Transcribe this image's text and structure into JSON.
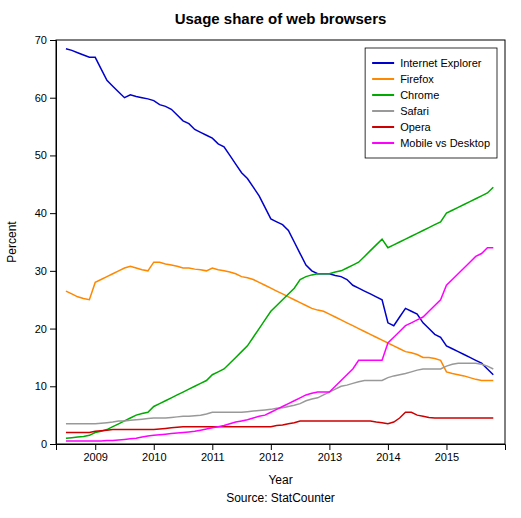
{
  "chart_data": {
    "type": "line",
    "title": "Usage share of web browsers",
    "xlabel": "Year",
    "ylabel": "Percent",
    "annotations": [
      "Source: StatCounter"
    ],
    "xlim": [
      2008.33,
      2016.0
    ],
    "xticks": [
      2009,
      2010,
      2011,
      2012,
      2013,
      2014,
      2015
    ],
    "ylim": [
      0,
      70
    ],
    "yticks": [
      0,
      10,
      20,
      30,
      40,
      50,
      60,
      70
    ],
    "grid": false,
    "legend": "upper right",
    "x": [
      2008.5,
      2008.6,
      2008.7,
      2008.8,
      2008.9,
      2009.0,
      2009.1,
      2009.2,
      2009.3,
      2009.4,
      2009.5,
      2009.6,
      2009.7,
      2009.8,
      2009.9,
      2010.0,
      2010.1,
      2010.2,
      2010.3,
      2010.4,
      2010.5,
      2010.6,
      2010.7,
      2010.8,
      2010.9,
      2011.0,
      2011.1,
      2011.2,
      2011.3,
      2011.4,
      2011.5,
      2011.6,
      2011.7,
      2011.8,
      2011.9,
      2012.0,
      2012.1,
      2012.2,
      2012.3,
      2012.4,
      2012.5,
      2012.6,
      2012.7,
      2012.8,
      2012.9,
      2013.0,
      2013.1,
      2013.2,
      2013.3,
      2013.4,
      2013.5,
      2013.6,
      2013.7,
      2013.8,
      2013.9,
      2014.0,
      2014.1,
      2014.2,
      2014.3,
      2014.4,
      2014.5,
      2014.6,
      2014.7,
      2014.8,
      2014.9,
      2015.0,
      2015.1,
      2015.2,
      2015.3,
      2015.4,
      2015.5,
      2015.6,
      2015.7,
      2015.8
    ],
    "series": [
      {
        "name": "Internet Explorer",
        "color": "#0000cc",
        "values": [
          68.5,
          68.2,
          67.8,
          67.4,
          67.0,
          67.0,
          65.0,
          63.0,
          62.0,
          61.0,
          60.0,
          60.5,
          60.2,
          60.0,
          59.8,
          59.5,
          58.8,
          58.5,
          58.0,
          57.0,
          56.0,
          55.5,
          54.5,
          54.0,
          53.5,
          53.0,
          52.0,
          51.5,
          50.0,
          48.5,
          47.0,
          46.0,
          44.5,
          43.0,
          41.0,
          39.0,
          38.5,
          38.0,
          37.0,
          35.0,
          33.0,
          31.0,
          30.0,
          29.5,
          29.5,
          29.5,
          29.2,
          29.0,
          28.5,
          27.5,
          27.0,
          26.5,
          26.0,
          25.5,
          25.0,
          21.0,
          20.5,
          22.0,
          23.5,
          23.0,
          22.5,
          21.0,
          20.0,
          19.0,
          18.5,
          17.0,
          16.5,
          16.0,
          15.5,
          15.0,
          14.5,
          14.0,
          13.0,
          12.0
        ]
      },
      {
        "name": "Firefox",
        "color": "#ff8800",
        "values": [
          26.5,
          26.0,
          25.5,
          25.2,
          25.0,
          28.0,
          28.5,
          29.0,
          29.5,
          30.0,
          30.5,
          30.8,
          30.5,
          30.2,
          30.0,
          31.5,
          31.5,
          31.2,
          31.0,
          30.8,
          30.5,
          30.5,
          30.3,
          30.2,
          30.0,
          30.5,
          30.2,
          30.0,
          29.8,
          29.5,
          29.0,
          28.8,
          28.5,
          28.0,
          27.5,
          27.0,
          26.5,
          26.0,
          25.5,
          25.0,
          24.5,
          24.0,
          23.5,
          23.2,
          23.0,
          22.5,
          22.0,
          21.5,
          21.0,
          20.5,
          20.0,
          19.5,
          19.0,
          18.5,
          18.0,
          17.5,
          17.0,
          16.5,
          16.0,
          15.8,
          15.5,
          15.0,
          15.0,
          14.8,
          14.5,
          12.5,
          12.2,
          12.0,
          11.8,
          11.5,
          11.2,
          11.0,
          11.0,
          11.0
        ]
      },
      {
        "name": "Chrome",
        "color": "#00aa00",
        "values": [
          1.0,
          1.1,
          1.2,
          1.3,
          1.5,
          2.0,
          2.2,
          2.5,
          3.0,
          3.5,
          4.0,
          4.5,
          5.0,
          5.3,
          5.5,
          6.5,
          7.0,
          7.5,
          8.0,
          8.5,
          9.0,
          9.5,
          10.0,
          10.5,
          11.0,
          12.0,
          12.5,
          13.0,
          14.0,
          15.0,
          16.0,
          17.0,
          18.5,
          20.0,
          21.5,
          23.0,
          24.0,
          25.0,
          26.0,
          27.0,
          28.5,
          29.0,
          29.3,
          29.5,
          29.5,
          29.5,
          29.8,
          30.0,
          30.5,
          31.0,
          31.5,
          32.5,
          33.5,
          34.5,
          35.5,
          34.0,
          34.5,
          35.0,
          35.5,
          36.0,
          36.5,
          37.0,
          37.5,
          38.0,
          38.5,
          40.0,
          40.5,
          41.0,
          41.5,
          42.0,
          42.5,
          43.0,
          43.5,
          44.5
        ]
      },
      {
        "name": "Safari",
        "color": "#999999",
        "values": [
          3.5,
          3.5,
          3.5,
          3.5,
          3.5,
          3.5,
          3.6,
          3.7,
          3.8,
          4.0,
          4.0,
          4.1,
          4.2,
          4.3,
          4.4,
          4.5,
          4.5,
          4.5,
          4.6,
          4.7,
          4.8,
          4.8,
          4.9,
          5.0,
          5.2,
          5.5,
          5.5,
          5.5,
          5.5,
          5.5,
          5.5,
          5.6,
          5.7,
          5.8,
          5.9,
          6.0,
          6.2,
          6.3,
          6.5,
          6.7,
          7.0,
          7.5,
          7.8,
          8.0,
          8.5,
          9.0,
          9.5,
          10.0,
          10.2,
          10.5,
          10.8,
          11.0,
          11.0,
          11.0,
          11.0,
          11.5,
          11.8,
          12.0,
          12.2,
          12.5,
          12.8,
          13.0,
          13.0,
          13.0,
          13.0,
          13.5,
          13.8,
          14.0,
          14.0,
          14.0,
          14.0,
          13.8,
          13.5,
          13.0
        ]
      },
      {
        "name": "Opera",
        "color": "#cc0000",
        "values": [
          2.0,
          2.0,
          2.0,
          2.0,
          2.0,
          2.2,
          2.3,
          2.4,
          2.5,
          2.5,
          2.5,
          2.5,
          2.5,
          2.5,
          2.5,
          2.5,
          2.6,
          2.7,
          2.8,
          2.9,
          3.0,
          3.0,
          3.0,
          3.0,
          3.0,
          3.0,
          3.0,
          3.0,
          3.0,
          3.0,
          3.0,
          3.0,
          3.0,
          3.0,
          3.0,
          3.0,
          3.2,
          3.3,
          3.5,
          3.7,
          4.0,
          4.0,
          4.0,
          4.0,
          4.0,
          4.0,
          4.0,
          4.0,
          4.0,
          4.0,
          4.0,
          4.0,
          4.0,
          3.8,
          3.7,
          3.5,
          3.8,
          4.5,
          5.5,
          5.5,
          5.0,
          4.8,
          4.6,
          4.5,
          4.5,
          4.5,
          4.5,
          4.5,
          4.5,
          4.5,
          4.5,
          4.5,
          4.5,
          4.5
        ]
      },
      {
        "name": "Mobile vs Desktop",
        "color": "#ff00ff",
        "values": [
          0.5,
          0.5,
          0.5,
          0.5,
          0.5,
          0.5,
          0.5,
          0.6,
          0.6,
          0.7,
          0.8,
          0.9,
          1.0,
          1.2,
          1.4,
          1.5,
          1.6,
          1.7,
          1.8,
          1.9,
          2.0,
          2.1,
          2.2,
          2.4,
          2.6,
          2.8,
          3.0,
          3.2,
          3.5,
          3.8,
          4.0,
          4.2,
          4.5,
          4.8,
          5.0,
          5.5,
          6.0,
          6.5,
          7.0,
          7.5,
          8.0,
          8.5,
          8.8,
          9.0,
          9.0,
          9.0,
          10.0,
          11.0,
          12.0,
          13.0,
          14.5,
          14.5,
          14.5,
          14.5,
          14.5,
          17.5,
          18.5,
          19.5,
          20.5,
          21.0,
          21.5,
          22.0,
          23.0,
          24.0,
          25.0,
          27.5,
          28.5,
          29.5,
          30.5,
          31.5,
          32.5,
          33.0,
          34.0,
          34.0
        ]
      }
    ]
  }
}
